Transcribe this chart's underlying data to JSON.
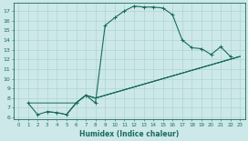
{
  "xlabel": "Humidex (Indice chaleur)",
  "bg_color": "#cce8e8",
  "line_color": "#1a6b5a",
  "grid_color": "#aacfcf",
  "xlim": [
    -0.5,
    23.5
  ],
  "ylim": [
    5.8,
    17.8
  ],
  "xticks": [
    0,
    1,
    2,
    3,
    4,
    5,
    6,
    7,
    8,
    9,
    10,
    11,
    12,
    13,
    14,
    15,
    16,
    17,
    18,
    19,
    20,
    21,
    22,
    23
  ],
  "yticks": [
    6,
    7,
    8,
    9,
    10,
    11,
    12,
    13,
    14,
    15,
    16,
    17
  ],
  "curve1_x": [
    1,
    2,
    3,
    4,
    5,
    6,
    7,
    8,
    9,
    10,
    11,
    12,
    13,
    14,
    15,
    16,
    17,
    18,
    19,
    20,
    21,
    22
  ],
  "curve1_y": [
    7.5,
    6.3,
    6.6,
    6.5,
    6.3,
    7.5,
    8.3,
    7.5,
    15.5,
    16.3,
    17.0,
    17.5,
    17.4,
    17.4,
    17.3,
    16.6,
    14.0,
    13.2,
    13.1,
    12.5,
    13.3,
    12.3
  ],
  "line_a_x": [
    1,
    6,
    7,
    8,
    23
  ],
  "line_a_y": [
    7.5,
    7.5,
    8.3,
    8.0,
    12.3
  ],
  "line_b_x": [
    5,
    6,
    7,
    8,
    23
  ],
  "line_b_y": [
    6.3,
    7.5,
    8.3,
    8.0,
    12.3
  ],
  "line_c_x": [
    3,
    4,
    5,
    6,
    7,
    8,
    23
  ],
  "line_c_y": [
    6.6,
    6.5,
    6.3,
    7.5,
    8.3,
    8.0,
    12.3
  ]
}
